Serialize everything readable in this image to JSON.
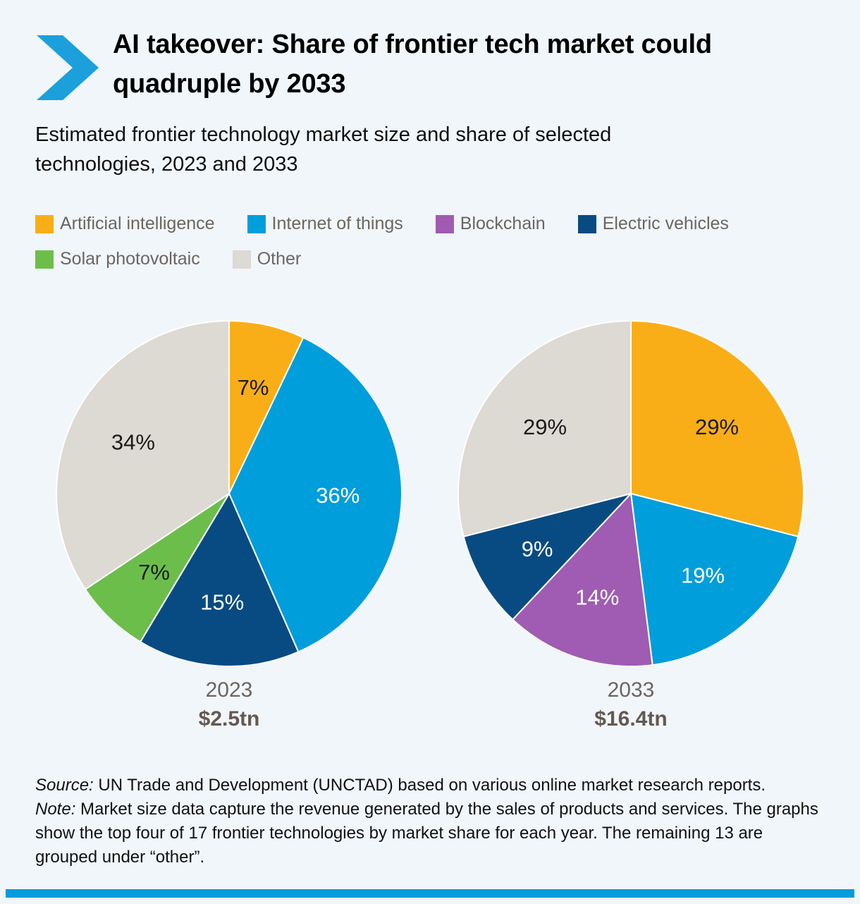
{
  "page": {
    "background": "#F1F6FA",
    "accent_blue": "#009CDB"
  },
  "header": {
    "title": "AI takeover: Share of frontier tech market could quadruple by 2033"
  },
  "subtitle": "Estimated frontier technology market size and share of selected technologies, 2023 and 2033",
  "chart_data": {
    "type": "pie",
    "title": "AI takeover: Share of frontier tech market could quadruple by 2033",
    "subtitle": "Estimated frontier technology market size and share of selected technologies, 2023 and 2033",
    "legend_position": "top",
    "legend": [
      "Artificial intelligence",
      "Internet of things",
      "Blockchain",
      "Electric vehicles",
      "Solar photovoltaic",
      "Other"
    ],
    "colors": {
      "Artificial intelligence": "#F9AE18",
      "Internet of things": "#009EDB",
      "Blockchain": "#9F5CB2",
      "Electric vehicles": "#084B82",
      "Solar photovoltaic": "#6CBE4B",
      "Other": "#DDD9D3"
    },
    "value_suffix": "%",
    "pies": [
      {
        "label": "2023",
        "total": "$2.5tn",
        "slices": [
          {
            "name": "Artificial intelligence",
            "value": 7
          },
          {
            "name": "Internet of things",
            "value": 36
          },
          {
            "name": "Electric vehicles",
            "value": 15
          },
          {
            "name": "Solar photovoltaic",
            "value": 7
          },
          {
            "name": "Other",
            "value": 34
          }
        ]
      },
      {
        "label": "2033",
        "total": "$16.4tn",
        "slices": [
          {
            "name": "Artificial intelligence",
            "value": 29
          },
          {
            "name": "Internet of things",
            "value": 19
          },
          {
            "name": "Blockchain",
            "value": 14
          },
          {
            "name": "Electric vehicles",
            "value": 9
          },
          {
            "name": "Other",
            "value": 29
          }
        ]
      }
    ]
  },
  "footer": {
    "source_prefix": "Source:",
    "source_text": " UN Trade and Development (UNCTAD) based on various online market research reports.",
    "note_prefix": "Note:",
    "note_text": " Market size data capture the revenue generated by the sales of products and services. The graphs show the top four of 17 frontier technologies by market share for each year. The remaining 13 are grouped under “other”."
  }
}
